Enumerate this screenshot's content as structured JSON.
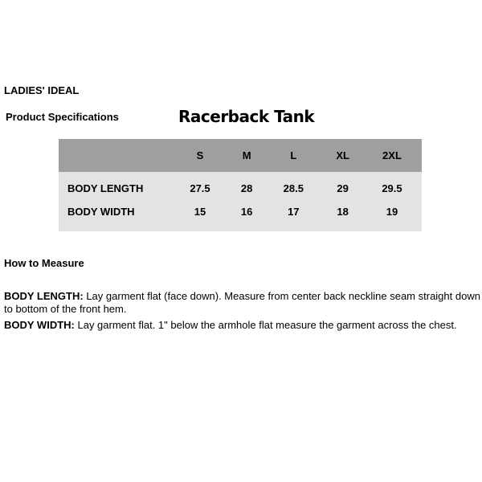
{
  "brand": "LADIES' IDEAL",
  "spec_label": "Product Specifications",
  "product_title": "Racerback Tank",
  "table": {
    "sizes": [
      "S",
      "M",
      "L",
      "XL",
      "2XL"
    ],
    "rows": [
      {
        "label": "BODY LENGTH",
        "values": [
          "27.5",
          "28",
          "28.5",
          "29",
          "29.5"
        ]
      },
      {
        "label": "BODY WIDTH",
        "values": [
          "15",
          "16",
          "17",
          "18",
          "19"
        ]
      }
    ],
    "colors": {
      "header": "#a09fa0",
      "body": "#e3e3e3"
    }
  },
  "how_to_measure": {
    "heading": "How to Measure",
    "items": [
      {
        "term": "BODY LENGTH:",
        "text": " Lay garment flat (face down). Measure from center back neckline seam straight down to bottom of the front hem."
      },
      {
        "term": "BODY WIDTH:",
        "text": " Lay garment flat. 1\" below the armhole flat measure the garment across the chest."
      }
    ]
  }
}
